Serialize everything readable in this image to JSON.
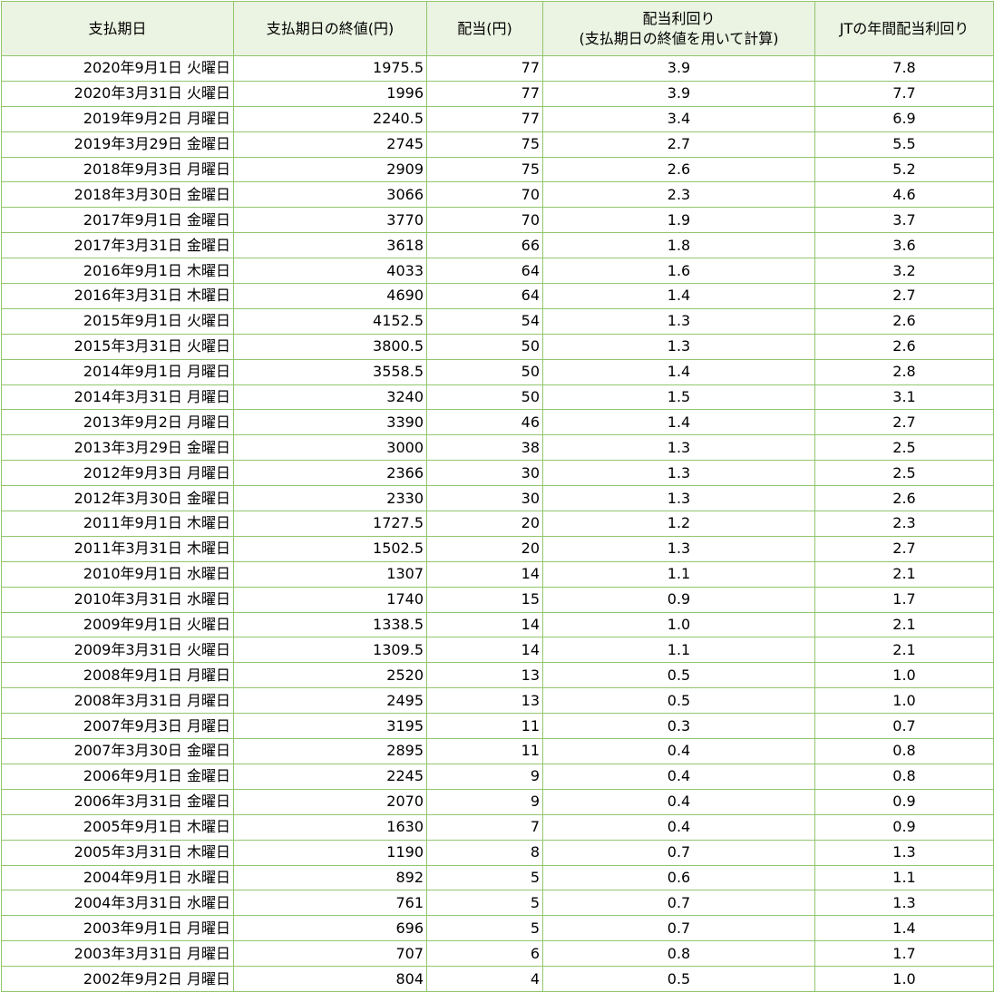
{
  "table": {
    "header": [
      "支払期日",
      "支払期日の終値(円)",
      "配当(円)",
      "配当利回り\n(支払期日の終値を用いて計算)",
      "JTの年間配当利回り"
    ],
    "rows": [
      [
        "2020年9月1日 火曜日",
        "1975.5",
        "77",
        "3.9",
        "7.8"
      ],
      [
        "2020年3月31日 火曜日",
        "1996",
        "77",
        "3.9",
        "7.7"
      ],
      [
        "2019年9月2日 月曜日",
        "2240.5",
        "77",
        "3.4",
        "6.9"
      ],
      [
        "2019年3月29日 金曜日",
        "2745",
        "75",
        "2.7",
        "5.5"
      ],
      [
        "2018年9月3日 月曜日",
        "2909",
        "75",
        "2.6",
        "5.2"
      ],
      [
        "2018年3月30日 金曜日",
        "3066",
        "70",
        "2.3",
        "4.6"
      ],
      [
        "2017年9月1日 金曜日",
        "3770",
        "70",
        "1.9",
        "3.7"
      ],
      [
        "2017年3月31日 金曜日",
        "3618",
        "66",
        "1.8",
        "3.6"
      ],
      [
        "2016年9月1日 木曜日",
        "4033",
        "64",
        "1.6",
        "3.2"
      ],
      [
        "2016年3月31日 木曜日",
        "4690",
        "64",
        "1.4",
        "2.7"
      ],
      [
        "2015年9月1日 火曜日",
        "4152.5",
        "54",
        "1.3",
        "2.6"
      ],
      [
        "2015年3月31日 火曜日",
        "3800.5",
        "50",
        "1.3",
        "2.6"
      ],
      [
        "2014年9月1日 月曜日",
        "3558.5",
        "50",
        "1.4",
        "2.8"
      ],
      [
        "2014年3月31日 月曜日",
        "3240",
        "50",
        "1.5",
        "3.1"
      ],
      [
        "2013年9月2日 月曜日",
        "3390",
        "46",
        "1.4",
        "2.7"
      ],
      [
        "2013年3月29日 金曜日",
        "3000",
        "38",
        "1.3",
        "2.5"
      ],
      [
        "2012年9月3日 月曜日",
        "2366",
        "30",
        "1.3",
        "2.5"
      ],
      [
        "2012年3月30日 金曜日",
        "2330",
        "30",
        "1.3",
        "2.6"
      ],
      [
        "2011年9月1日 木曜日",
        "1727.5",
        "20",
        "1.2",
        "2.3"
      ],
      [
        "2011年3月31日 木曜日",
        "1502.5",
        "20",
        "1.3",
        "2.7"
      ],
      [
        "2010年9月1日 水曜日",
        "1307",
        "14",
        "1.1",
        "2.1"
      ],
      [
        "2010年3月31日 水曜日",
        "1740",
        "15",
        "0.9",
        "1.7"
      ],
      [
        "2009年9月1日 火曜日",
        "1338.5",
        "14",
        "1.0",
        "2.1"
      ],
      [
        "2009年3月31日 火曜日",
        "1309.5",
        "14",
        "1.1",
        "2.1"
      ],
      [
        "2008年9月1日 月曜日",
        "2520",
        "13",
        "0.5",
        "1.0"
      ],
      [
        "2008年3月31日 月曜日",
        "2495",
        "13",
        "0.5",
        "1.0"
      ],
      [
        "2007年9月3日 月曜日",
        "3195",
        "11",
        "0.3",
        "0.7"
      ],
      [
        "2007年3月30日 金曜日",
        "2895",
        "11",
        "0.4",
        "0.8"
      ],
      [
        "2006年9月1日 金曜日",
        "2245",
        "9",
        "0.4",
        "0.8"
      ],
      [
        "2006年3月31日 金曜日",
        "2070",
        "9",
        "0.4",
        "0.9"
      ],
      [
        "2005年9月1日 木曜日",
        "1630",
        "7",
        "0.4",
        "0.9"
      ],
      [
        "2005年3月31日 木曜日",
        "1190",
        "8",
        "0.7",
        "1.3"
      ],
      [
        "2004年9月1日 水曜日",
        "892",
        "5",
        "0.6",
        "1.1"
      ],
      [
        "2004年3月31日 水曜日",
        "761",
        "5",
        "0.7",
        "1.3"
      ],
      [
        "2003年9月1日 月曜日",
        "696",
        "5",
        "0.7",
        "1.4"
      ],
      [
        "2003年3月31日 月曜日",
        "707",
        "6",
        "0.8",
        "1.7"
      ],
      [
        "2002年9月2日 月曜日",
        "804",
        "4",
        "0.5",
        "1.0"
      ]
    ]
  }
}
